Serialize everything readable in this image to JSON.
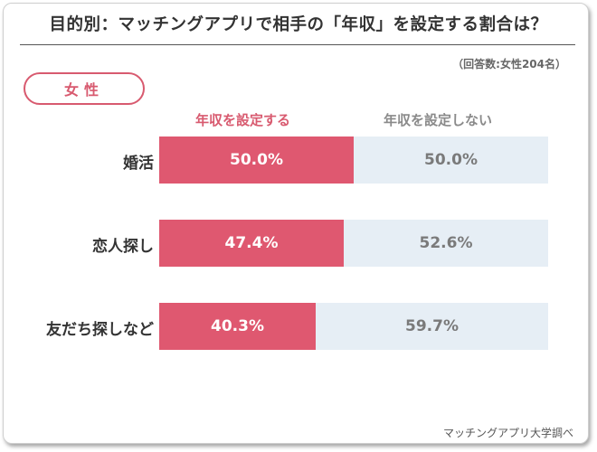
{
  "title": "目的別：マッチングアプリで相手の「年収」を設定する割合は？",
  "note": "（回答数:女性204名）",
  "tag": "女性",
  "source": "マッチングアプリ大学調べ",
  "colors": {
    "set": "#df5870",
    "not_set": "#e6eef5",
    "accent": "#d85a6f"
  },
  "chart_data": {
    "type": "bar",
    "orientation": "horizontal-stacked",
    "categories": [
      "婚活",
      "恋人探し",
      "友だち探しなど"
    ],
    "series": [
      {
        "name": "年収を設定する",
        "values": [
          50.0,
          47.4,
          40.3
        ],
        "labels": [
          "50.0%",
          "47.4%",
          "40.3%"
        ]
      },
      {
        "name": "年収を設定しない",
        "values": [
          50.0,
          52.6,
          59.7
        ],
        "labels": [
          "50.0%",
          "52.6%",
          "59.7%"
        ]
      }
    ],
    "xlim": [
      0,
      100
    ],
    "unit": "%"
  }
}
